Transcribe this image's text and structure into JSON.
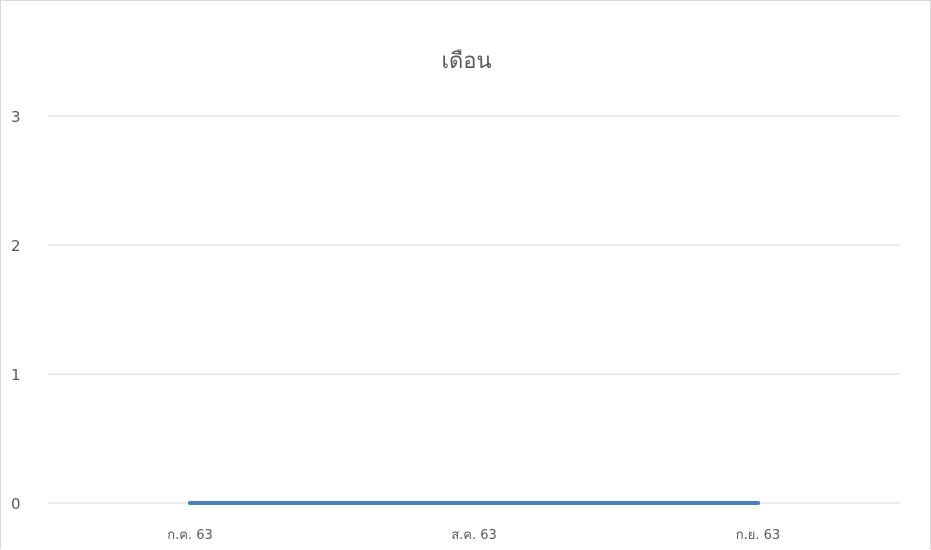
{
  "chart_data": {
    "type": "line",
    "title": "เดือน",
    "categories": [
      "ก.ค. 63",
      "ส.ค. 63",
      "ก.ย. 63"
    ],
    "series": [
      {
        "values": [
          0,
          0,
          0
        ],
        "color": "#4f81bd"
      }
    ],
    "ylim": [
      0,
      3
    ],
    "yticks": [
      0,
      1,
      2,
      3
    ],
    "grid": true
  }
}
